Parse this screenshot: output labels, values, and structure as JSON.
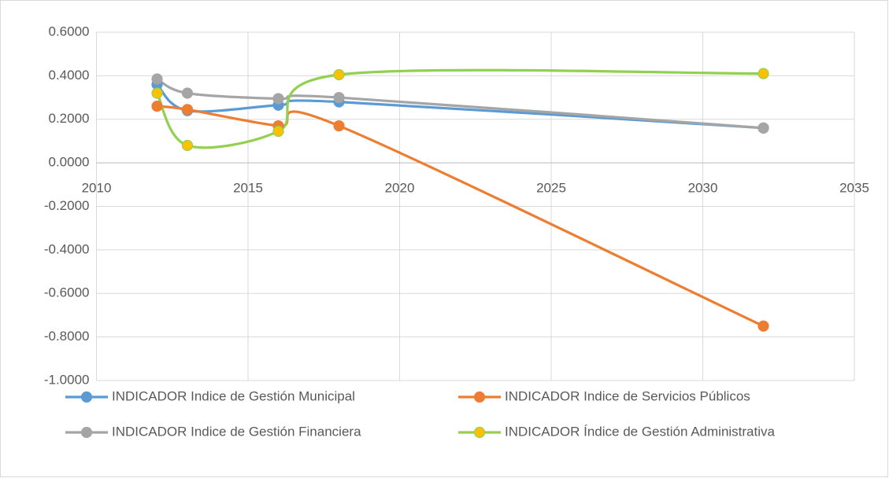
{
  "chart_data": {
    "type": "scatter-smooth",
    "x": [
      2012,
      2013,
      2016,
      2018,
      2032
    ],
    "series": [
      {
        "name": "INDICADOR Indice de Gestión Municipal",
        "color": "#5b9bd5",
        "marker_color": "#5b9bd5",
        "values": [
          0.36,
          0.24,
          0.265,
          0.28,
          0.16
        ]
      },
      {
        "name": "INDICADOR Indice de Servicios Públicos",
        "color": "#ed7d31",
        "marker_color": "#ed7d31",
        "values": [
          0.26,
          0.245,
          0.17,
          0.17,
          -0.75
        ]
      },
      {
        "name": "INDICADOR Indice de Gestión Financiera",
        "color": "#a5a5a5",
        "marker_color": "#a5a5a5",
        "values": [
          0.385,
          0.32,
          0.295,
          0.3,
          0.16
        ]
      },
      {
        "name": "INDICADOR Índice de Gestión Administrativa",
        "color": "#92d050",
        "marker_color": "#ffc000",
        "values": [
          0.32,
          0.08,
          0.145,
          0.405,
          0.41
        ]
      }
    ],
    "xlim": [
      2010,
      2035
    ],
    "xticks": [
      2010,
      2015,
      2020,
      2025,
      2030,
      2035
    ],
    "ylim": [
      -1.0,
      0.6
    ],
    "yticks": [
      {
        "value": -1.0,
        "label": "-1.0000"
      },
      {
        "value": -0.8,
        "label": "-0.8000"
      },
      {
        "value": -0.6,
        "label": "-0.6000"
      },
      {
        "value": -0.4,
        "label": "-0.4000"
      },
      {
        "value": -0.2,
        "label": "-0.2000"
      },
      {
        "value": 0,
        "label": "0.0000"
      },
      {
        "value": 0.2,
        "label": "0.2000"
      },
      {
        "value": 0.4,
        "label": "0.4000"
      },
      {
        "value": 0.6,
        "label": "0.6000"
      }
    ],
    "grid": true,
    "legend": "bottom"
  }
}
